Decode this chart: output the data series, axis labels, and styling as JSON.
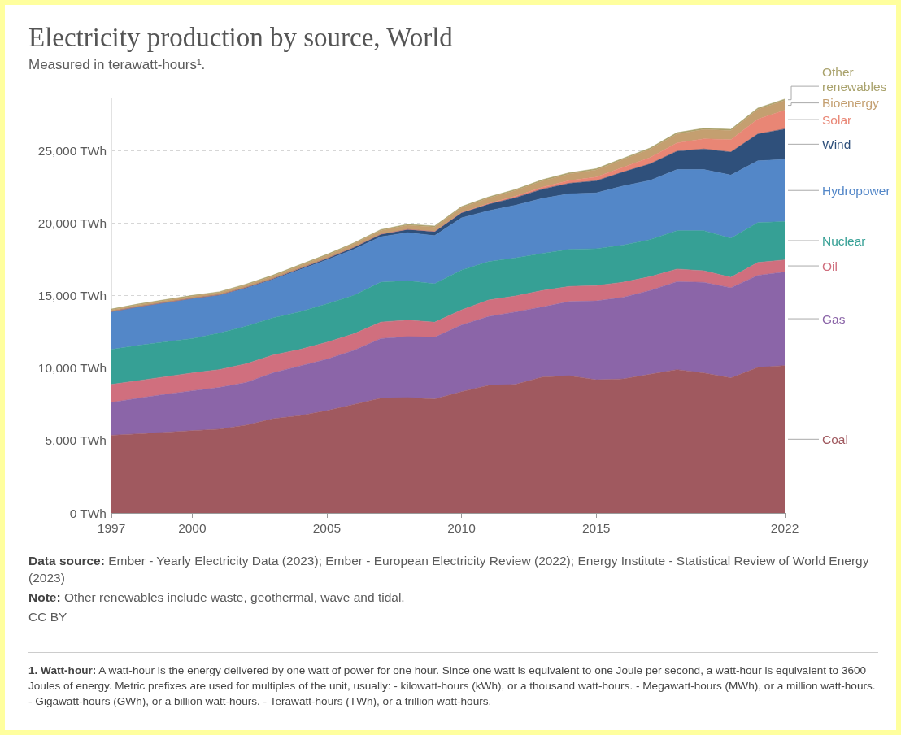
{
  "chart_data": {
    "type": "area",
    "title": "Electricity production by source, World",
    "subtitle": "Measured in terawatt-hours¹.",
    "x": [
      1997,
      1998,
      1999,
      2000,
      2001,
      2002,
      2003,
      2004,
      2005,
      2006,
      2007,
      2008,
      2009,
      2010,
      2011,
      2012,
      2013,
      2014,
      2015,
      2016,
      2017,
      2018,
      2019,
      2020,
      2021,
      2022
    ],
    "stacked": true,
    "series": [
      {
        "name": "Coal",
        "color": "#a0595f",
        "values": [
          5360,
          5460,
          5570,
          5680,
          5780,
          6060,
          6500,
          6720,
          7060,
          7490,
          7920,
          7960,
          7860,
          8370,
          8810,
          8870,
          9380,
          9470,
          9190,
          9250,
          9570,
          9890,
          9660,
          9320,
          10040,
          10170
        ]
      },
      {
        "name": "Gas",
        "color": "#8b65a8",
        "values": [
          2270,
          2460,
          2620,
          2750,
          2880,
          2940,
          3170,
          3420,
          3550,
          3730,
          4110,
          4210,
          4260,
          4600,
          4740,
          5000,
          4830,
          5120,
          5440,
          5630,
          5780,
          6070,
          6250,
          6220,
          6350,
          6460
        ]
      },
      {
        "name": "Oil",
        "color": "#d06f7e",
        "values": [
          1240,
          1210,
          1210,
          1230,
          1230,
          1290,
          1230,
          1140,
          1170,
          1140,
          1140,
          1140,
          1040,
          1040,
          1140,
          1100,
          1140,
          1040,
          1060,
          1040,
          950,
          870,
          800,
          720,
          890,
          830
        ]
      },
      {
        "name": "Nuclear",
        "color": "#36a095",
        "values": [
          2410,
          2430,
          2410,
          2370,
          2520,
          2600,
          2560,
          2600,
          2650,
          2650,
          2750,
          2710,
          2650,
          2750,
          2650,
          2620,
          2560,
          2560,
          2540,
          2560,
          2560,
          2650,
          2770,
          2690,
          2750,
          2650
        ]
      },
      {
        "name": "Hydropower",
        "color": "#5387c8",
        "values": [
          2600,
          2650,
          2690,
          2750,
          2600,
          2620,
          2650,
          2900,
          3030,
          3180,
          3130,
          3320,
          3320,
          3600,
          3510,
          3640,
          3790,
          3830,
          3850,
          4080,
          4080,
          4210,
          4210,
          4360,
          4260,
          4280
        ]
      },
      {
        "name": "Wind",
        "color": "#2f507b",
        "values": [
          10,
          20,
          20,
          30,
          40,
          50,
          60,
          90,
          100,
          130,
          170,
          220,
          280,
          340,
          440,
          520,
          640,
          720,
          830,
          960,
          1140,
          1270,
          1420,
          1590,
          1850,
          2100
        ]
      },
      {
        "name": "Solar",
        "color": "#e98675",
        "values": [
          0,
          0,
          0,
          0,
          0,
          0,
          0,
          0,
          0,
          10,
          10,
          10,
          20,
          30,
          60,
          100,
          140,
          190,
          260,
          330,
          440,
          570,
          700,
          850,
          1030,
          1290
        ]
      },
      {
        "name": "Bioenergy",
        "color": "#c49f70",
        "values": [
          130,
          140,
          150,
          150,
          160,
          170,
          180,
          200,
          220,
          240,
          260,
          280,
          300,
          340,
          380,
          400,
          430,
          460,
          500,
          540,
          580,
          620,
          640,
          630,
          670,
          680
        ]
      },
      {
        "name": "Other renewables",
        "color": "#a9a26c",
        "values": [
          50,
          50,
          50,
          50,
          50,
          60,
          60,
          60,
          60,
          60,
          60,
          70,
          70,
          70,
          70,
          70,
          80,
          80,
          80,
          80,
          80,
          90,
          90,
          90,
          90,
          90
        ]
      }
    ],
    "xlim": [
      1997,
      2022
    ],
    "xticks": [
      1997,
      2000,
      2005,
      2010,
      2015,
      2022
    ],
    "ylim": [
      0,
      28600
    ],
    "yticks": [
      {
        "value": 0,
        "label": "0 TWh"
      },
      {
        "value": 5000,
        "label": "5,000 TWh"
      },
      {
        "value": 10000,
        "label": "10,000 TWh"
      },
      {
        "value": 15000,
        "label": "15,000 TWh"
      },
      {
        "value": 20000,
        "label": "20,000 TWh"
      },
      {
        "value": 25000,
        "label": "25,000 TWh"
      }
    ],
    "grid": "y",
    "legend": "right",
    "annotations": [
      "Data source: Ember - Yearly Electricity Data (2023); Ember - European Electricity Review (2022); Energy Institute - Statistical Review of World Energy (2023)",
      "Note: Other renewables include waste, geothermal, wave and tidal.",
      "CC BY",
      "1. Watt-hour: A watt-hour is the energy delivered by one watt of power for one hour. Since one watt is equivalent to one Joule per second, a watt-hour is equivalent to 3600 Joules of energy. Metric prefixes are used for multiples of the unit, usually: - kilowatt-hours (kWh), or a thousand watt-hours. - Megawatt-hours (MWh), or a million watt-hours. - Gigawatt-hours (GWh), or a billion watt-hours. - Terawatt-hours (TWh), or a trillion watt-hours."
    ]
  }
}
